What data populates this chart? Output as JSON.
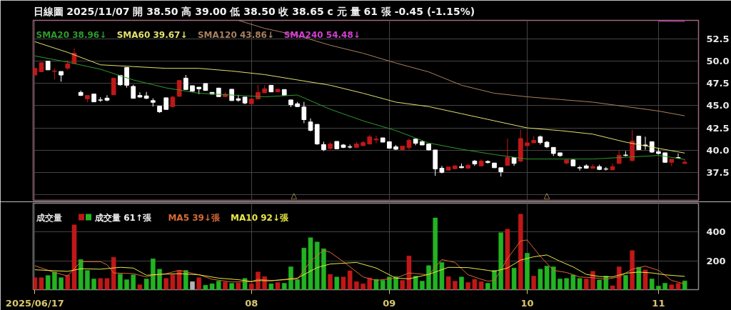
{
  "chart_data": [
    {
      "type": "candlestick",
      "title": "日線圖 2025/11/07 開 38.50 高 39.00 低 38.50 收 38.65 c 元 量 61 張 -0.45 (-1.15%)",
      "categories": [
        "2025/06/17",
        null,
        null,
        null,
        null,
        null,
        null,
        null,
        null,
        null,
        null,
        null,
        null,
        null,
        null,
        null,
        null,
        null,
        null,
        null,
        null,
        null,
        null,
        null,
        null,
        null,
        null,
        null,
        null,
        null,
        null,
        null,
        null,
        "08",
        null,
        null,
        null,
        null,
        null,
        null,
        null,
        null,
        null,
        null,
        null,
        null,
        null,
        null,
        null,
        null,
        null,
        null,
        null,
        null,
        "09",
        null,
        null,
        null,
        null,
        null,
        null,
        null,
        null,
        null,
        null,
        null,
        null,
        null,
        null,
        null,
        null,
        null,
        null,
        null,
        null,
        "10",
        null,
        null,
        null,
        null,
        null,
        null,
        null,
        null,
        null,
        null,
        null,
        null,
        null,
        null,
        null,
        null,
        null,
        null,
        null,
        "11",
        null,
        null,
        null,
        null
      ],
      "ohlc": [
        [
          48.45,
          49.25,
          48.4,
          49.2
        ],
        [
          48.82,
          49.85,
          48.8,
          49.83
        ],
        [
          50.0,
          50.0,
          49.0,
          49.03
        ],
        [
          48.85,
          49.17,
          47.97,
          48.9
        ],
        [
          48.85,
          48.85,
          47.7,
          48.45
        ],
        [
          49.22,
          50.1,
          49.03,
          49.7
        ],
        [
          49.75,
          51.43,
          49.75,
          50.9
        ],
        [
          46.5,
          46.7,
          46.1,
          46.15
        ],
        [
          45.78,
          46.15,
          45.38,
          46.15
        ],
        [
          46.31,
          46.31,
          45.43,
          45.43
        ],
        [
          45.65,
          45.97,
          45.43,
          45.62
        ],
        [
          45.85,
          46.18,
          45.5,
          45.62
        ],
        [
          46.23,
          48.1,
          46.23,
          48.1
        ],
        [
          48.42,
          48.42,
          47.25,
          47.35
        ],
        [
          49.3,
          49.3,
          47.03,
          47.3
        ],
        [
          47.17,
          47.35,
          45.83,
          45.83
        ],
        [
          46.15,
          46.5,
          45.9,
          45.97
        ],
        [
          46.1,
          46.55,
          45.75,
          45.83
        ],
        [
          45.57,
          45.83,
          44.9,
          45.38
        ],
        [
          44.95,
          44.95,
          44.2,
          44.31
        ],
        [
          45.89,
          45.89,
          44.58,
          44.58
        ],
        [
          44.9,
          46.1,
          44.77,
          45.97
        ],
        [
          46.05,
          47.83,
          46.05,
          47.83
        ],
        [
          48.1,
          48.45,
          46.82,
          46.82
        ],
        [
          47.25,
          47.25,
          46.55,
          46.63
        ],
        [
          47.08,
          47.1,
          46.29,
          46.9
        ],
        [
          47.49,
          47.49,
          46.71,
          46.71
        ],
        [
          46.5,
          46.5,
          46.25,
          46.29
        ],
        [
          46.98,
          46.98,
          46.02,
          46.02
        ],
        [
          46.02,
          46.5,
          46.0,
          46.29
        ],
        [
          46.85,
          46.85,
          45.57,
          45.57
        ],
        [
          45.78,
          46.23,
          45.43,
          45.62
        ],
        [
          45.97,
          45.97,
          45.17,
          45.3
        ],
        [
          45.22,
          45.75,
          45.17,
          45.75
        ],
        [
          45.75,
          47.35,
          45.75,
          46.5
        ],
        [
          46.45,
          47.3,
          46.45,
          46.9
        ],
        [
          47.3,
          47.3,
          46.55,
          46.55
        ],
        [
          46.55,
          46.85,
          46.55,
          46.85
        ],
        [
          46.82,
          46.82,
          46.15,
          46.18
        ],
        [
          45.65,
          45.65,
          44.85,
          45.11
        ],
        [
          45.22,
          45.43,
          44.85,
          44.9
        ],
        [
          44.85,
          45.43,
          43.03,
          43.43
        ],
        [
          43.17,
          43.57,
          42.1,
          42.23
        ],
        [
          42.9,
          42.9,
          40.6,
          40.69
        ],
        [
          40.63,
          40.95,
          39.89,
          40.05
        ],
        [
          40.18,
          40.95,
          40.1,
          40.69
        ],
        [
          40.98,
          40.98,
          40.15,
          40.15
        ],
        [
          40.58,
          40.69,
          40.23,
          40.31
        ],
        [
          40.38,
          40.63,
          40.18,
          40.34
        ],
        [
          40.31,
          40.95,
          40.31,
          40.69
        ],
        [
          40.5,
          41.03,
          40.45,
          40.85
        ],
        [
          40.69,
          41.7,
          40.63,
          41.49
        ],
        [
          41.15,
          41.62,
          40.77,
          41.25
        ],
        [
          41.38,
          41.38,
          40.9,
          40.9
        ],
        [
          40.95,
          40.95,
          40.21,
          40.21
        ],
        [
          40.37,
          40.58,
          40.02,
          40.1
        ],
        [
          40.05,
          40.45,
          40.02,
          40.45
        ],
        [
          40.29,
          41.3,
          40.05,
          41.11
        ],
        [
          41.25,
          41.25,
          40.55,
          40.77
        ],
        [
          40.95,
          41.09,
          40.58,
          40.58
        ],
        [
          40.69,
          40.69,
          39.98,
          40.02
        ],
        [
          40.02,
          40.02,
          37.11,
          37.89
        ],
        [
          37.97,
          38.23,
          37.38,
          37.51
        ],
        [
          37.75,
          38.1,
          37.75,
          38.1
        ],
        [
          37.91,
          38.31,
          37.91,
          38.23
        ],
        [
          38.15,
          38.5,
          37.97,
          38.02
        ],
        [
          37.97,
          38.45,
          37.97,
          38.29
        ],
        [
          38.77,
          38.9,
          38.23,
          38.45
        ],
        [
          38.23,
          38.98,
          38.23,
          38.77
        ],
        [
          38.73,
          38.85,
          38.5,
          38.6
        ],
        [
          38.55,
          38.55,
          38.02,
          38.02
        ],
        [
          38.02,
          38.02,
          37.03,
          37.57
        ],
        [
          38.29,
          41.3,
          38.23,
          39.17
        ],
        [
          39.17,
          39.17,
          38.23,
          38.5
        ],
        [
          38.77,
          42.29,
          38.63,
          41.3
        ],
        [
          40.5,
          41.97,
          40.5,
          40.82
        ],
        [
          40.82,
          41.57,
          40.82,
          41.09
        ],
        [
          41.51,
          41.65,
          40.63,
          40.85
        ],
        [
          40.9,
          41.03,
          40.23,
          40.37
        ],
        [
          40.31,
          40.31,
          39.35,
          39.62
        ],
        [
          39.7,
          39.7,
          39.25,
          39.38
        ],
        [
          38.55,
          38.9,
          38.37,
          38.9
        ],
        [
          38.9,
          39.03,
          38.23,
          38.23
        ],
        [
          38.05,
          38.23,
          37.7,
          37.99
        ],
        [
          38.23,
          38.42,
          37.91,
          37.97
        ],
        [
          37.97,
          38.42,
          37.97,
          38.15
        ],
        [
          38.15,
          38.37,
          37.75,
          37.83
        ],
        [
          37.89,
          38.1,
          37.7,
          37.86
        ],
        [
          37.78,
          38.5,
          37.78,
          38.15
        ],
        [
          38.5,
          39.97,
          38.5,
          39.43
        ],
        [
          39.45,
          39.89,
          39.3,
          39.4
        ],
        [
          38.82,
          42.29,
          38.77,
          41.03
        ],
        [
          41.57,
          41.57,
          40.05,
          40.05
        ],
        [
          40.58,
          41.51,
          40.05,
          40.5
        ],
        [
          40.95,
          40.95,
          39.7,
          39.78
        ],
        [
          39.83,
          40.23,
          39.51,
          39.62
        ],
        [
          39.7,
          39.7,
          38.63,
          38.63
        ],
        [
          38.63,
          38.98,
          38.18,
          38.98
        ],
        [
          39.17,
          39.62,
          39.03,
          39.1
        ],
        [
          38.5,
          39.0,
          38.5,
          38.65
        ]
      ],
      "colors": [
        "#c01818",
        "#c01818",
        "#ffffff",
        "#c01818",
        "#ffffff",
        "#c01818",
        "#c01818",
        "#ffffff",
        "#c01818",
        "#ffffff",
        "#ffffff",
        "#ffffff",
        "#c01818",
        "#ffffff",
        "#ffffff",
        "#ffffff",
        "#ffffff",
        "#ffffff",
        "#ffffff",
        "#ffffff",
        "#ffffff",
        "#c01818",
        "#c01818",
        "#ffffff",
        "#ffffff",
        "#ffffff",
        "#ffffff",
        "#ffffff",
        "#ffffff",
        "#c01818",
        "#ffffff",
        "#ffffff",
        "#ffffff",
        "#c01818",
        "#c01818",
        "#c01818",
        "#ffffff",
        "#c01818",
        "#ffffff",
        "#ffffff",
        "#ffffff",
        "#ffffff",
        "#ffffff",
        "#ffffff",
        "#ffffff",
        "#c01818",
        "#ffffff",
        "#ffffff",
        "#ffffff",
        "#c01818",
        "#c01818",
        "#c01818",
        "#c01818",
        "#ffffff",
        "#ffffff",
        "#ffffff",
        "#c01818",
        "#c01818",
        "#ffffff",
        "#ffffff",
        "#ffffff",
        "#ffffff",
        "#ffffff",
        "#c01818",
        "#c01818",
        "#ffffff",
        "#c01818",
        "#ffffff",
        "#c01818",
        "#ffffff",
        "#ffffff",
        "#ffffff",
        "#c01818",
        "#ffffff",
        "#c01818",
        "#c01818",
        "#c01818",
        "#ffffff",
        "#ffffff",
        "#ffffff",
        "#ffffff",
        "#c01818",
        "#ffffff",
        "#ffffff",
        "#ffffff",
        "#c01818",
        "#ffffff",
        "#ffffff",
        "#c01818",
        "#c01818",
        "#ffffff",
        "#c01818",
        "#ffffff",
        "#ffffff",
        "#ffffff",
        "#ffffff",
        "#ffffff",
        "#c01818",
        "#ffffff",
        "#c01818"
      ],
      "series": [
        {
          "name": "SMA20 38.96↓",
          "type": "line",
          "color": "#2e9a2e",
          "values": [
            50.6,
            null,
            null,
            null,
            null,
            49.9,
            null,
            null,
            null,
            null,
            49.1,
            null,
            null,
            null,
            null,
            47.9,
            null,
            null,
            null,
            null,
            47.0,
            null,
            null,
            null,
            null,
            46.4,
            null,
            null,
            null,
            null,
            46.2,
            null,
            null,
            null,
            null,
            46.0,
            null,
            null,
            null,
            null,
            46.2,
            null,
            null,
            null,
            null,
            44.6,
            null,
            null,
            null,
            null,
            43.3,
            null,
            null,
            null,
            null,
            42.2,
            null,
            null,
            null,
            null,
            40.8,
            null,
            null,
            null,
            null,
            40.1,
            null,
            null,
            null,
            null,
            39.5,
            null,
            null,
            null,
            null,
            39.0,
            null,
            null,
            null,
            null,
            39.0,
            null,
            null,
            null,
            null,
            39.0,
            null,
            null,
            null,
            null,
            39.2,
            null,
            null,
            null,
            null,
            39.4,
            null,
            null,
            null,
            38.96
          ]
        },
        {
          "name": "SMA60 39.67↓",
          "type": "line",
          "color": "#e0e070",
          "values": [
            52.2,
            null,
            null,
            null,
            null,
            51.0,
            null,
            null,
            null,
            null,
            49.6,
            null,
            null,
            null,
            null,
            49.4,
            null,
            null,
            null,
            null,
            49.2,
            null,
            null,
            null,
            null,
            49.2,
            null,
            null,
            null,
            null,
            48.9,
            null,
            null,
            null,
            null,
            48.5,
            null,
            null,
            null,
            null,
            47.9,
            null,
            null,
            null,
            null,
            47.3,
            null,
            null,
            null,
            null,
            46.4,
            null,
            null,
            null,
            null,
            45.4,
            null,
            null,
            null,
            null,
            44.9,
            null,
            null,
            null,
            null,
            44.1,
            null,
            null,
            null,
            null,
            43.3,
            null,
            null,
            null,
            null,
            42.5,
            null,
            null,
            null,
            null,
            42.2,
            null,
            null,
            null,
            null,
            41.8,
            null,
            null,
            null,
            null,
            40.9,
            null,
            null,
            null,
            null,
            40.2,
            null,
            null,
            null,
            39.67
          ]
        },
        {
          "name": "SMA120 43.86↓",
          "type": "line",
          "color": "#a8805e",
          "values": [
            null,
            null,
            null,
            null,
            null,
            null,
            null,
            null,
            null,
            null,
            null,
            null,
            null,
            null,
            null,
            null,
            null,
            null,
            null,
            null,
            null,
            null,
            null,
            null,
            null,
            null,
            null,
            null,
            null,
            null,
            null,
            54.6,
            null,
            null,
            null,
            53.7,
            null,
            null,
            null,
            null,
            52.9,
            null,
            null,
            null,
            null,
            51.8,
            null,
            null,
            null,
            null,
            50.9,
            null,
            null,
            null,
            null,
            49.8,
            null,
            null,
            null,
            null,
            48.8,
            null,
            null,
            null,
            null,
            47.3,
            null,
            null,
            null,
            null,
            46.4,
            null,
            null,
            null,
            null,
            46.0,
            null,
            null,
            null,
            null,
            45.7,
            null,
            null,
            null,
            null,
            45.4,
            null,
            null,
            null,
            null,
            44.9,
            null,
            null,
            null,
            null,
            44.4,
            null,
            null,
            null,
            43.86
          ]
        },
        {
          "name": "SMA240 54.48↓",
          "type": "line",
          "color": "#d040d0",
          "values": [
            null,
            null,
            null,
            null,
            null,
            null,
            null,
            null,
            null,
            null,
            null,
            null,
            null,
            null,
            null,
            null,
            null,
            null,
            null,
            null,
            null,
            null,
            null,
            null,
            null,
            null,
            null,
            null,
            null,
            null,
            null,
            null,
            null,
            null,
            null,
            null,
            null,
            null,
            null,
            null,
            null,
            null,
            null,
            null,
            null,
            null,
            null,
            null,
            null,
            null,
            null,
            null,
            null,
            null,
            null,
            null,
            null,
            null,
            null,
            null,
            null,
            null,
            null,
            null,
            null,
            null,
            null,
            null,
            null,
            null,
            null,
            null,
            null,
            null,
            null,
            null,
            null,
            null,
            null,
            null,
            null,
            null,
            null,
            null,
            null,
            null,
            null,
            null,
            null,
            null,
            null,
            null,
            null,
            null,
            null,
            54.5,
            null,
            null,
            null,
            54.48
          ]
        }
      ],
      "ylim": [
        34.35,
        54.6
      ],
      "yticks": [
        {
          "value": 35,
          "label": null
        },
        {
          "value": 37.5,
          "label": "37.5"
        },
        {
          "value": 40,
          "label": "40.0"
        },
        {
          "value": 42.5,
          "label": "42.5"
        },
        {
          "value": 45,
          "label": "45.0"
        },
        {
          "value": 47.5,
          "label": "47.5"
        },
        {
          "value": 50,
          "label": "50.0"
        },
        {
          "value": 52.5,
          "label": "52.5"
        }
      ],
      "tick_labels": "y",
      "grid": true,
      "legend": "top left",
      "annotations": [
        "△",
        "△"
      ]
    },
    {
      "type": "bar",
      "title": "成交量",
      "categories": [
        "2025/06/17",
        null,
        null,
        null,
        null,
        null,
        null,
        null,
        null,
        null,
        null,
        null,
        null,
        null,
        null,
        null,
        null,
        null,
        null,
        null,
        null,
        null,
        null,
        null,
        null,
        null,
        null,
        null,
        null,
        null,
        null,
        null,
        null,
        "08",
        null,
        null,
        null,
        null,
        null,
        null,
        null,
        null,
        null,
        null,
        null,
        null,
        null,
        null,
        null,
        null,
        null,
        null,
        null,
        null,
        "09",
        null,
        null,
        null,
        null,
        null,
        null,
        null,
        null,
        null,
        null,
        null,
        null,
        null,
        null,
        null,
        null,
        null,
        null,
        null,
        null,
        "10",
        null,
        null,
        null,
        null,
        null,
        null,
        null,
        null,
        null,
        null,
        null,
        null,
        null,
        null,
        null,
        null,
        null,
        null,
        null,
        "11",
        null,
        null,
        null,
        null
      ],
      "series": [
        {
          "name": "成交量 61↑張",
          "type": "bar",
          "values": [
            83,
            83,
            98,
            123,
            83,
            100,
            450,
            209,
            134,
            75,
            78,
            78,
            225,
            108,
            69,
            103,
            34,
            75,
            214,
            142,
            78,
            103,
            134,
            134,
            56,
            83,
            31,
            41,
            59,
            53,
            44,
            47,
            78,
            41,
            123,
            91,
            41,
            50,
            45,
            159,
            69,
            289,
            361,
            331,
            284,
            106,
            88,
            88,
            131,
            56,
            41,
            81,
            72,
            64,
            88,
            91,
            64,
            234,
            94,
            59,
            167,
            498,
            188,
            91,
            59,
            88,
            50,
            72,
            56,
            45,
            134,
            395,
            420,
            150,
            525,
            253,
            94,
            142,
            164,
            159,
            75,
            78,
            102,
            78,
            75,
            128,
            67,
            94,
            27,
            159,
            100,
            272,
            156,
            137,
            75,
            25,
            45,
            34,
            44,
            61
          ],
          "colors": [
            "#c01818",
            "#c01818",
            "#22b422",
            "#22b422",
            "#22b422",
            "#c01818",
            "#c01818",
            "#22b422",
            "#22b422",
            "#22b422",
            "#c01818",
            "#c01818",
            "#c01818",
            "#22b422",
            "#22b422",
            "#22b422",
            "#c01818",
            "#22b422",
            "#22b422",
            "#22b422",
            "#c01818",
            "#c01818",
            "#c01818",
            "#22b422",
            "#b4b4b4",
            "#c01818",
            "#22b422",
            "#22b422",
            "#22b422",
            "#c01818",
            "#22b422",
            "#c01818",
            "#22b422",
            "#c01818",
            "#c01818",
            "#c01818",
            "#22b422",
            "#c01818",
            "#22b422",
            "#22b422",
            "#22b422",
            "#22b422",
            "#22b422",
            "#22b422",
            "#22b422",
            "#c01818",
            "#22b422",
            "#c01818",
            "#c01818",
            "#c01818",
            "#c01818",
            "#c01818",
            "#22b422",
            "#22b422",
            "#22b422",
            "#22b422",
            "#c01818",
            "#c01818",
            "#22b422",
            "#22b422",
            "#22b422",
            "#22b422",
            "#22b422",
            "#c01818",
            "#c01818",
            "#22b422",
            "#c01818",
            "#c01818",
            "#c01818",
            "#22b422",
            "#22b422",
            "#22b422",
            "#c01818",
            "#22b422",
            "#c01818",
            "#22b422",
            "#c01818",
            "#22b422",
            "#22b422",
            "#22b422",
            "#22b422",
            "#22b422",
            "#22b422",
            "#22b422",
            "#c01818",
            "#c01818",
            "#22b422",
            "#22b422",
            "#c01818",
            "#c01818",
            "#22b422",
            "#c01818",
            "#22b422",
            "#c01818",
            "#22b422",
            "#22b422",
            "#22b422",
            "#c01818",
            "#c01818",
            "#22b422"
          ]
        },
        {
          "name": "MA5 39↓張",
          "type": "line",
          "color": "#d86a36",
          "values": [
            166,
            null,
            null,
            119,
            null,
            95,
            null,
            194,
            null,
            null,
            194,
            173,
            116,
            null,
            null,
            111,
            null,
            88,
            100,
            null,
            111,
            null,
            134,
            null,
            null,
            103,
            null,
            72,
            null,
            null,
            53,
            null,
            null,
            56,
            72,
            null,
            64,
            null,
            null,
            null,
            72,
            null,
            197,
            null,
            275,
            259,
            null,
            194,
            null,
            null,
            88,
            null,
            64,
            null,
            null,
            80,
            null,
            116,
            null,
            null,
            103,
            null,
            209,
            null,
            189,
            null,
            103,
            null,
            72,
            59,
            64,
            134,
            216,
            null,
            338,
            345,
            null,
            231,
            null,
            134,
            null,
            119,
            null,
            88,
            null,
            83,
            null,
            72,
            null,
            88,
            null,
            142,
            null,
            163,
            null,
            134,
            null,
            64,
            null,
            39
          ]
        },
        {
          "name": "MA10 92↓張",
          "type": "line",
          "color": "#e8e848",
          "values": [
            138,
            null,
            null,
            null,
            null,
            127,
            null,
            145,
            null,
            null,
            142,
            null,
            null,
            155,
            null,
            150,
            null,
            100,
            null,
            106,
            null,
            null,
            111,
            null,
            null,
            103,
            null,
            null,
            80,
            null,
            null,
            69,
            null,
            56,
            63,
            null,
            61,
            null,
            null,
            null,
            80,
            null,
            null,
            153,
            null,
            178,
            null,
            null,
            null,
            189,
            null,
            null,
            150,
            null,
            null,
            80,
            null,
            75,
            null,
            null,
            106,
            null,
            null,
            155,
            null,
            null,
            153,
            null,
            null,
            134,
            127,
            null,
            150,
            null,
            205,
            null,
            228,
            null,
            241,
            null,
            197,
            null,
            158,
            null,
            106,
            null,
            91,
            null,
            88,
            null,
            114,
            null,
            122,
            null,
            116,
            null,
            103,
            null,
            null,
            92
          ]
        }
      ],
      "ylim": [
        0,
        600
      ],
      "yticks": [
        200,
        400
      ],
      "grid": true,
      "legend": "top left"
    }
  ]
}
